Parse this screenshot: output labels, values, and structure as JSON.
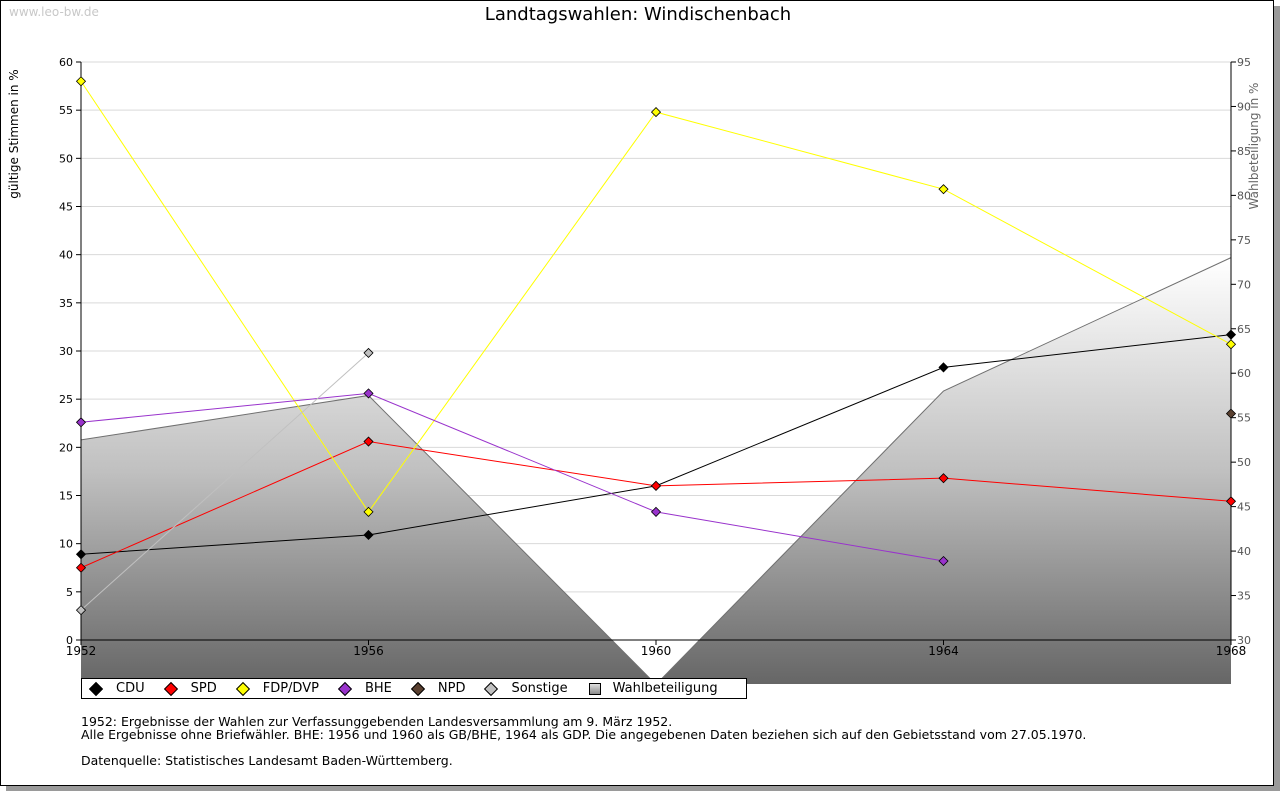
{
  "watermark": "www.leo-bw.de",
  "title": "Landtagswahlen: Windischenbach",
  "chart_data": {
    "type": "line",
    "title": "Landtagswahlen: Windischenbach",
    "x": [
      1952,
      1956,
      1960,
      1964,
      1968
    ],
    "ylabel": "gültige Stimmen in %",
    "ylim": [
      0,
      60
    ],
    "yticks": [
      0,
      5,
      10,
      15,
      20,
      25,
      30,
      35,
      40,
      45,
      50,
      55,
      60
    ],
    "y2label": "Wahlbeteiligung in %",
    "y2lim": [
      30,
      95
    ],
    "y2ticks": [
      30,
      35,
      40,
      45,
      50,
      55,
      60,
      65,
      70,
      75,
      80,
      85,
      90,
      95
    ],
    "grid": true,
    "legend_position": "bottom-left",
    "series": [
      {
        "name": "CDU",
        "color": "#000000",
        "values": [
          8.9,
          10.9,
          16.0,
          28.3,
          31.7
        ]
      },
      {
        "name": "SPD",
        "color": "#ff0000",
        "values": [
          7.5,
          20.6,
          16.0,
          16.8,
          14.4
        ]
      },
      {
        "name": "FDP/DVP",
        "color": "#ffff00",
        "values": [
          58.0,
          13.3,
          54.8,
          46.8,
          30.7
        ]
      },
      {
        "name": "BHE",
        "color": "#9933cc",
        "values": [
          22.6,
          25.6,
          13.3,
          8.2,
          null
        ]
      },
      {
        "name": "NPD",
        "color": "#5a4030",
        "values": [
          null,
          null,
          null,
          null,
          23.5
        ]
      },
      {
        "name": "Sonstige",
        "color": "#c0c0c0",
        "values": [
          3.1,
          29.8,
          null,
          null,
          null
        ]
      }
    ],
    "area_series": {
      "name": "Wahlbeteiligung",
      "axis": "right",
      "values": [
        52.5,
        57.5,
        25.0,
        58.0,
        73.0
      ]
    }
  },
  "legend": {
    "items": [
      {
        "label": "CDU",
        "color": "#000000"
      },
      {
        "label": "SPD",
        "color": "#ff0000"
      },
      {
        "label": "FDP/DVP",
        "color": "#ffff00"
      },
      {
        "label": "BHE",
        "color": "#9933cc"
      },
      {
        "label": "NPD",
        "color": "#5a4030"
      },
      {
        "label": "Sonstige",
        "color": "#c0c0c0"
      }
    ],
    "area_label": "Wahlbeteiligung"
  },
  "notes": {
    "line1": "1952: Ergebnisse der Wahlen zur Verfassunggebenden Landesversammlung am 9. März 1952.",
    "line2": "Alle Ergebnisse ohne Briefwähler. BHE: 1956 und 1960 als GB/BHE, 1964 als GDP. Die angegebenen Daten beziehen sich auf den Gebietsstand vom 27.05.1970.",
    "line3": "Datenquelle: Statistisches Landesamt Baden-Württemberg."
  }
}
